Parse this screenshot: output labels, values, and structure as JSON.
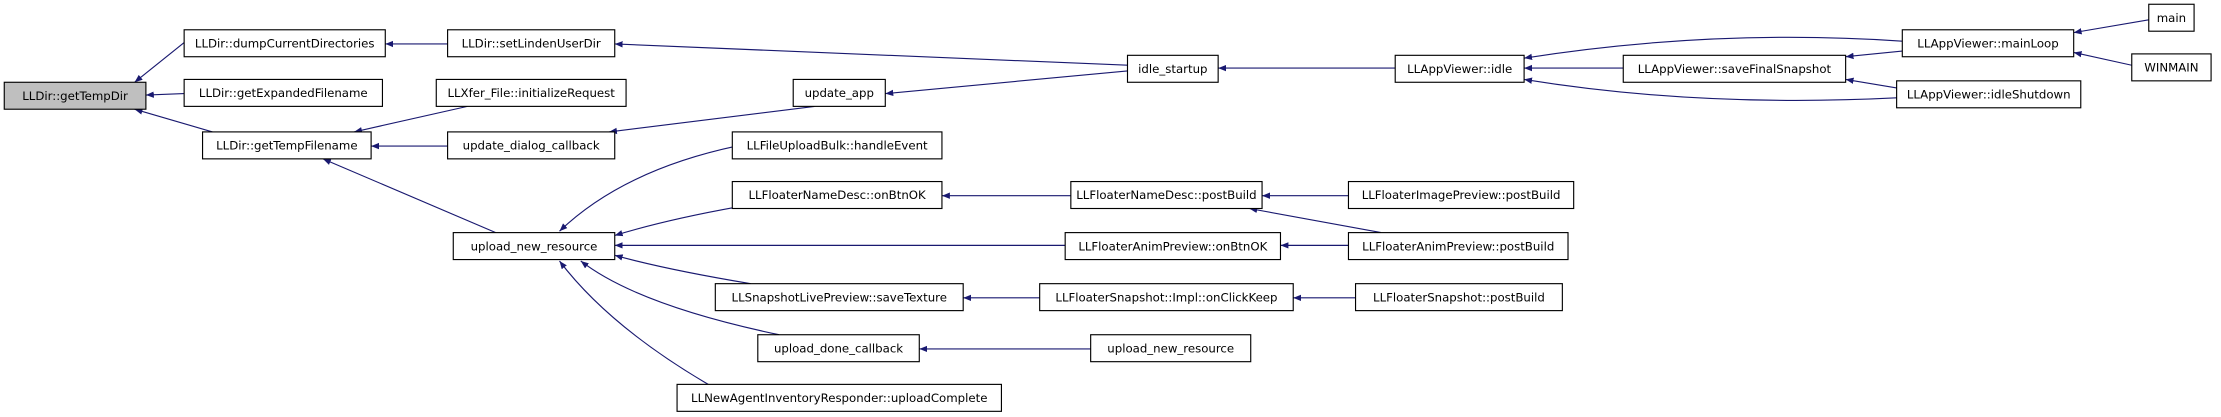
{
  "nodes": [
    {
      "label": "LLDir::getTempDir"
    },
    {
      "label": "LLDir::dumpCurrentDirectories"
    },
    {
      "label": "LLDir::setLindenUserDir"
    },
    {
      "label": "LLDir::getExpandedFilename"
    },
    {
      "label": "LLDir::getTempFilename"
    },
    {
      "label": "LLXfer_File::initializeRequest"
    },
    {
      "label": "update_dialog_callback"
    },
    {
      "label": "update_app"
    },
    {
      "label": "idle_startup"
    },
    {
      "label": "LLAppViewer::idle"
    },
    {
      "label": "LLAppViewer::saveFinalSnapshot"
    },
    {
      "label": "LLAppViewer::mainLoop"
    },
    {
      "label": "LLAppViewer::idleShutdown"
    },
    {
      "label": "main"
    },
    {
      "label": "WINMAIN"
    },
    {
      "label": "upload_new_resource"
    },
    {
      "label": "LLFileUploadBulk::handleEvent"
    },
    {
      "label": "LLFloaterNameDesc::onBtnOK"
    },
    {
      "label": "LLFloaterNameDesc::postBuild"
    },
    {
      "label": "LLFloaterImagePreview::postBuild"
    },
    {
      "label": "LLFloaterAnimPreview::onBtnOK"
    },
    {
      "label": "LLFloaterAnimPreview::postBuild"
    },
    {
      "label": "LLSnapshotLivePreview::saveTexture"
    },
    {
      "label": "LLFloaterSnapshot::Impl::onClickKeep"
    },
    {
      "label": "LLFloaterSnapshot::postBuild"
    },
    {
      "label": "upload_done_callback"
    },
    {
      "label": "upload_new_resource"
    },
    {
      "label": "LLNewAgentInventoryResponder::uploadComplete"
    }
  ]
}
